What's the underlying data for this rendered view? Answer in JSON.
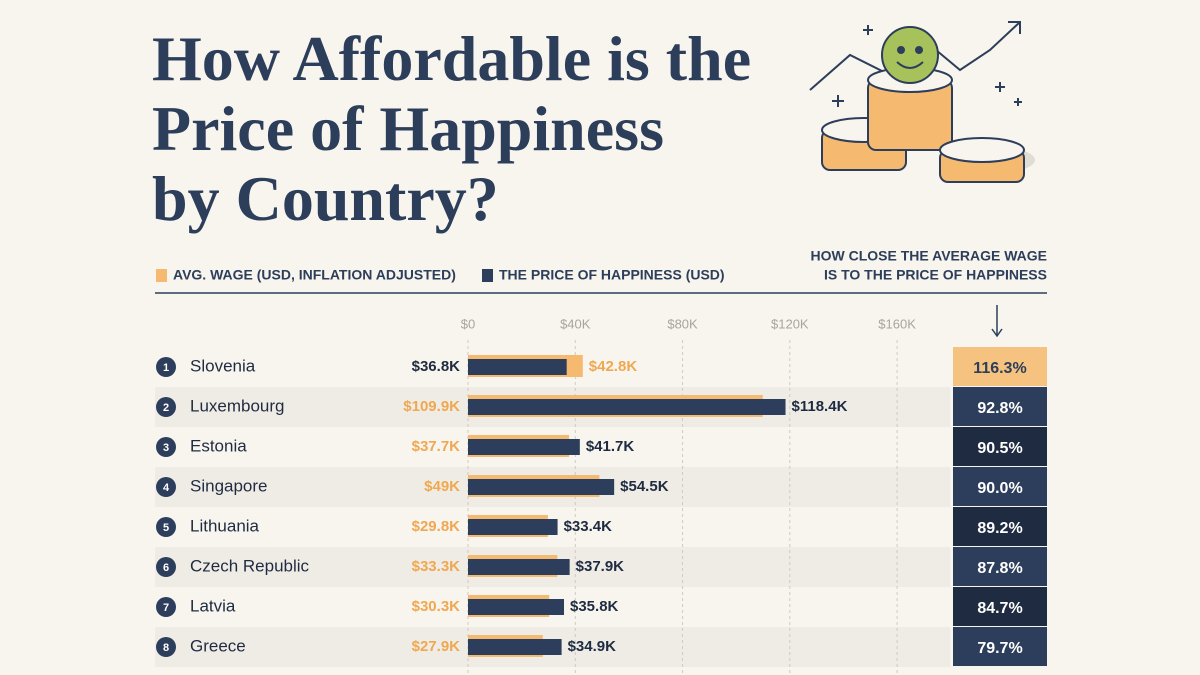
{
  "chart_data": {
    "type": "bar",
    "title": [
      "How Affordable is the",
      "Price of Happiness",
      "by Country?"
    ],
    "categories": [
      "Slovenia",
      "Luxembourg",
      "Estonia",
      "Singapore",
      "Lithuania",
      "Czech Republic",
      "Latvia",
      "Greece"
    ],
    "ranks": [
      1,
      2,
      3,
      4,
      5,
      6,
      7,
      8
    ],
    "series": [
      {
        "name": "AVG. WAGE (USD, INFLATION ADJUSTED)",
        "color": "#f5b96f",
        "values": [
          42800,
          109900,
          37700,
          49000,
          29800,
          33300,
          30300,
          27900
        ],
        "value_labels": [
          "$42.8K",
          "$109.9K",
          "$37.7K",
          "$49K",
          "$29.8K",
          "$33.3K",
          "$30.3K",
          "$27.9K"
        ]
      },
      {
        "name": "THE PRICE OF HAPPINESS (USD)",
        "color": "#2c3e5c",
        "values": [
          36800,
          118400,
          41700,
          54500,
          33400,
          37900,
          35800,
          34900
        ],
        "value_labels": [
          "$36.8K",
          "$118.4K",
          "$41.7K",
          "$54.5K",
          "$33.4K",
          "$37.9K",
          "$35.8K",
          "$34.9K"
        ]
      }
    ],
    "xlim": [
      0,
      176000
    ],
    "xticks": [
      {
        "value": 0,
        "label": "$0"
      },
      {
        "value": 40000,
        "label": "$40K"
      },
      {
        "value": 80000,
        "label": "$80K"
      },
      {
        "value": 120000,
        "label": "$120K"
      },
      {
        "value": 160000,
        "label": "$160K"
      }
    ],
    "grid": true,
    "closeness": {
      "title": [
        "HOW CLOSE THE AVERAGE WAGE",
        "IS TO THE PRICE OF HAPPINESS"
      ],
      "values": [
        116.3,
        92.8,
        90.5,
        90.0,
        89.2,
        87.8,
        84.7,
        79.7
      ],
      "value_labels": [
        "116.3%",
        "92.8%",
        "90.5%",
        "90.0%",
        "89.2%",
        "87.8%",
        "84.7%",
        "79.7%"
      ],
      "colors": [
        "#f6c27f",
        "#2c3e5c",
        "#1f2b40",
        "#2c3e5c",
        "#1f2b40",
        "#2c3e5c",
        "#1f2b40",
        "#2c3e5c"
      ]
    }
  }
}
